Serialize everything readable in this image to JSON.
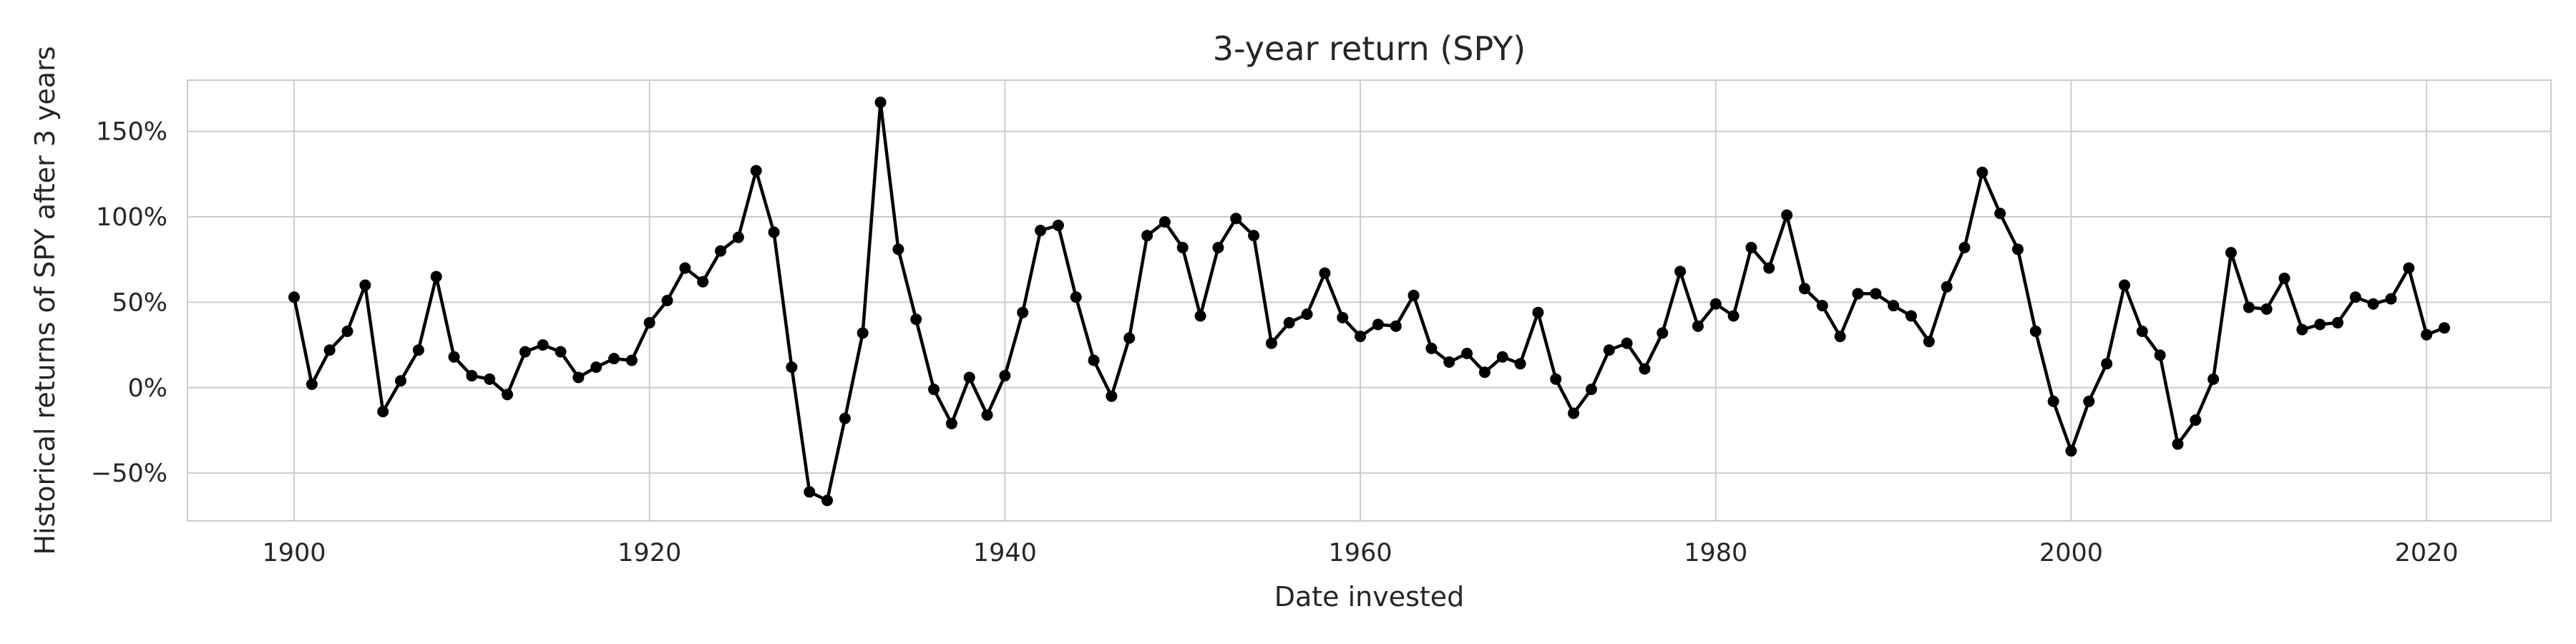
{
  "chart_data": {
    "type": "line",
    "title": "3-year return (SPY)",
    "xlabel": "Date invested",
    "ylabel": "Historical returns of SPY after 3 years",
    "xlim": [
      1894,
      2027
    ],
    "ylim": [
      -78,
      180
    ],
    "x_ticks": [
      1900,
      1920,
      1940,
      1960,
      1980,
      2000,
      2020
    ],
    "x_tick_labels": [
      "1900",
      "1920",
      "1940",
      "1960",
      "1980",
      "2000",
      "2020"
    ],
    "y_ticks": [
      -50,
      0,
      50,
      100,
      150
    ],
    "y_tick_labels": [
      "−50%",
      "0%",
      "50%",
      "100%",
      "150%"
    ],
    "grid": true,
    "line_color": "#000000",
    "grid_color": "#cccccc",
    "series": [
      {
        "x": [
          1900,
          1901,
          1902,
          1903,
          1904,
          1905,
          1906,
          1907,
          1908,
          1909,
          1910,
          1911,
          1912,
          1913,
          1914,
          1915,
          1916,
          1917,
          1918,
          1919,
          1920,
          1921,
          1922,
          1923,
          1924,
          1925,
          1926,
          1927,
          1928,
          1929,
          1930,
          1931,
          1932,
          1933,
          1934,
          1935,
          1936,
          1937,
          1938,
          1939,
          1940,
          1941,
          1942,
          1943,
          1944,
          1945,
          1946,
          1947,
          1948,
          1949,
          1950,
          1951,
          1952,
          1953,
          1954,
          1955,
          1956,
          1957,
          1958,
          1959,
          1960,
          1961,
          1962,
          1963,
          1964,
          1965,
          1966,
          1967,
          1968,
          1969,
          1970,
          1971,
          1972,
          1973,
          1974,
          1975,
          1976,
          1977,
          1978,
          1979,
          1980,
          1981,
          1982,
          1983,
          1984,
          1985,
          1986,
          1987,
          1988,
          1989,
          1990,
          1991,
          1992,
          1993,
          1994,
          1995,
          1996,
          1997,
          1998,
          1999,
          2000,
          2001,
          2002,
          2003,
          2004,
          2005,
          2006,
          2007,
          2008,
          2009,
          2010,
          2011,
          2012,
          2013,
          2014,
          2015,
          2016,
          2017,
          2018,
          2019,
          2020,
          2021
        ],
        "values": [
          53,
          2,
          22,
          33,
          60,
          -14,
          4,
          22,
          65,
          18,
          7,
          5,
          -4,
          21,
          25,
          21,
          6,
          12,
          17,
          16,
          38,
          51,
          70,
          62,
          80,
          88,
          127,
          91,
          12,
          -61,
          -66,
          -18,
          32,
          167,
          81,
          40,
          -1,
          -21,
          6,
          -16,
          7,
          44,
          92,
          95,
          53,
          16,
          -5,
          29,
          89,
          97,
          82,
          42,
          82,
          99,
          89,
          26,
          38,
          43,
          67,
          41,
          30,
          37,
          36,
          54,
          23,
          15,
          20,
          9,
          18,
          14,
          44,
          5,
          -15,
          -1,
          22,
          26,
          11,
          32,
          68,
          36,
          49,
          42,
          82,
          70,
          101,
          58,
          48,
          30,
          55,
          55,
          48,
          42,
          27,
          59,
          82,
          126,
          102,
          81,
          33,
          -8,
          -37,
          -8,
          14,
          60,
          33,
          19,
          -33,
          -19,
          5,
          79,
          47,
          46,
          64,
          34,
          37,
          38,
          53,
          49,
          52,
          70,
          31,
          35
        ]
      }
    ]
  }
}
